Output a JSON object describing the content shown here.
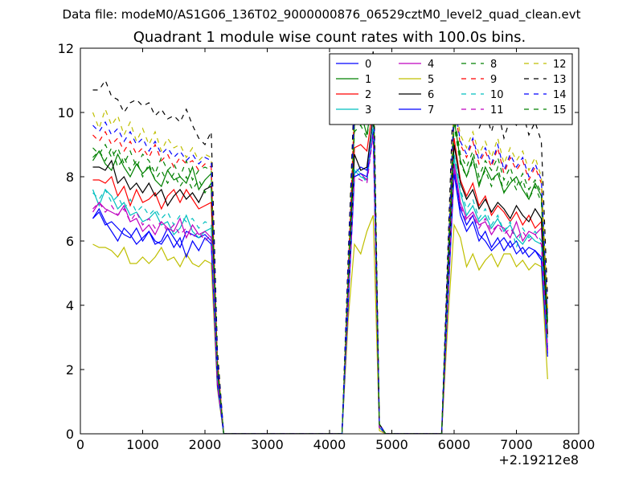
{
  "suptitle": "Data file: modeM0/AS1G06_136T02_9000000876_06529cztM0_level2_quad_clean.evt",
  "chart_data": {
    "type": "line",
    "title": "Quadrant 1 module wise count rates with 100.0s bins.",
    "xlabel": "",
    "ylabel": "",
    "x_offset_label": "+2.19212e8",
    "xlim": [
      0,
      8000
    ],
    "ylim": [
      0,
      12
    ],
    "xticks": [
      0,
      1000,
      2000,
      3000,
      4000,
      5000,
      6000,
      7000,
      8000
    ],
    "yticks": [
      0,
      2,
      4,
      6,
      8,
      10,
      12
    ],
    "grid": false,
    "legend_position": "top-right",
    "legend_columns": 4,
    "x_segments": [
      [
        200,
        300,
        400,
        500,
        600,
        700,
        800,
        900,
        1000,
        1100,
        1200,
        1300,
        1400,
        1500,
        1600,
        1700,
        1800,
        1900,
        2000,
        2100,
        2200,
        2300
      ],
      [
        4200,
        4300,
        4400,
        4500,
        4600,
        4700,
        4800,
        4900
      ],
      [
        5800,
        5900,
        6000,
        6100,
        6200,
        6300,
        6400,
        6500,
        6600,
        6700,
        6800,
        6900,
        7000,
        7100,
        7200,
        7300,
        7400,
        7500
      ]
    ],
    "gap_y": 0,
    "series": [
      {
        "name": "0",
        "color": "#0000ff",
        "dash": "solid",
        "segments": [
          [
            6.7,
            7.0,
            6.6,
            6.3,
            6.0,
            6.4,
            6.2,
            5.9,
            6.1,
            6.3,
            5.9,
            6.0,
            6.4,
            6.1,
            5.8,
            6.3,
            6.2,
            6.1,
            6.2,
            6.0,
            1.5,
            0.0
          ],
          [
            0.0,
            4.2,
            8.1,
            8.3,
            8.2,
            9.9,
            0.2,
            0.0
          ],
          [
            0.0,
            4.2,
            8.3,
            7.0,
            6.5,
            6.8,
            6.2,
            6.0,
            5.7,
            5.9,
            6.1,
            5.8,
            6.0,
            5.6,
            5.8,
            5.7,
            5.5,
            2.5
          ]
        ]
      },
      {
        "name": "1",
        "color": "#008000",
        "dash": "solid",
        "segments": [
          [
            8.5,
            8.8,
            8.4,
            8.2,
            8.7,
            8.3,
            8.0,
            8.4,
            8.1,
            8.3,
            7.9,
            7.7,
            8.2,
            7.9,
            8.0,
            7.8,
            8.3,
            7.6,
            7.9,
            8.1,
            2.2,
            0.0
          ],
          [
            0.0,
            4.8,
            9.6,
            10.0,
            9.3,
            10.6,
            0.3,
            0.0
          ],
          [
            0.0,
            5.0,
            9.8,
            8.5,
            8.0,
            8.6,
            7.7,
            8.3,
            7.9,
            8.1,
            7.5,
            7.8,
            8.0,
            7.6,
            7.3,
            7.8,
            7.4,
            3.5
          ]
        ]
      },
      {
        "name": "2",
        "color": "#ff0000",
        "dash": "solid",
        "segments": [
          [
            7.9,
            7.9,
            7.8,
            8.0,
            7.4,
            7.7,
            7.1,
            7.6,
            7.2,
            7.3,
            7.5,
            7.0,
            7.4,
            7.6,
            7.2,
            7.6,
            7.3,
            7.0,
            7.1,
            7.2,
            1.9,
            0.0
          ],
          [
            0.0,
            4.5,
            8.9,
            9.0,
            8.8,
            10.2,
            0.2,
            0.0
          ],
          [
            0.0,
            4.6,
            9.2,
            7.9,
            7.4,
            7.8,
            7.1,
            7.4,
            6.8,
            7.1,
            6.9,
            6.6,
            6.9,
            6.5,
            6.8,
            6.4,
            6.6,
            3.0
          ]
        ]
      },
      {
        "name": "3",
        "color": "#00bfbf",
        "dash": "solid",
        "segments": [
          [
            7.6,
            7.1,
            7.6,
            7.4,
            7.0,
            7.2,
            6.8,
            6.9,
            6.6,
            6.7,
            6.9,
            6.5,
            6.6,
            6.2,
            6.4,
            6.8,
            6.3,
            6.1,
            6.3,
            6.4,
            1.6,
            0.0
          ],
          [
            0.0,
            4.2,
            8.2,
            8.0,
            7.9,
            9.5,
            0.2,
            0.0
          ],
          [
            0.0,
            4.3,
            8.6,
            7.5,
            6.8,
            7.1,
            6.6,
            6.8,
            6.4,
            6.7,
            6.3,
            6.5,
            6.1,
            5.9,
            6.2,
            6.0,
            5.9,
            2.7
          ]
        ]
      },
      {
        "name": "4",
        "color": "#bf00bf",
        "dash": "solid",
        "segments": [
          [
            6.9,
            7.2,
            7.0,
            6.9,
            6.8,
            7.1,
            6.6,
            6.7,
            6.3,
            6.5,
            6.2,
            6.6,
            6.4,
            6.3,
            6.7,
            6.1,
            6.5,
            6.2,
            6.3,
            6.1,
            1.6,
            0.0
          ],
          [
            0.0,
            4.1,
            8.0,
            8.1,
            7.9,
            9.4,
            0.2,
            0.0
          ],
          [
            0.0,
            4.3,
            8.4,
            7.2,
            6.7,
            6.9,
            6.5,
            6.6,
            6.2,
            6.5,
            6.4,
            6.1,
            6.6,
            6.0,
            6.3,
            6.2,
            6.4,
            2.6
          ]
        ]
      },
      {
        "name": "5",
        "color": "#bfbf00",
        "dash": "solid",
        "segments": [
          [
            5.9,
            5.8,
            5.8,
            5.7,
            5.5,
            5.8,
            5.3,
            5.3,
            5.5,
            5.3,
            5.5,
            5.8,
            5.4,
            5.5,
            5.2,
            5.6,
            5.3,
            5.2,
            5.4,
            5.3,
            1.4,
            0.0
          ],
          [
            0.0,
            3.6,
            5.9,
            5.6,
            6.3,
            6.8,
            0.1,
            0.0
          ],
          [
            0.0,
            3.5,
            6.5,
            6.1,
            5.2,
            5.6,
            5.1,
            5.4,
            5.6,
            5.2,
            5.6,
            5.6,
            5.2,
            5.4,
            5.1,
            5.3,
            5.2,
            1.7
          ]
        ]
      },
      {
        "name": "6",
        "color": "#000000",
        "dash": "solid",
        "segments": [
          [
            8.3,
            8.3,
            8.2,
            8.5,
            7.8,
            8.0,
            7.6,
            7.8,
            7.5,
            7.8,
            7.4,
            7.6,
            7.1,
            7.4,
            7.6,
            7.3,
            7.5,
            7.2,
            7.6,
            7.7,
            2.0,
            0.0
          ],
          [
            0.0,
            4.4,
            8.7,
            8.2,
            8.3,
            9.9,
            0.3,
            0.0
          ],
          [
            0.0,
            4.6,
            9.0,
            7.8,
            7.3,
            7.6,
            7.0,
            7.3,
            6.9,
            7.2,
            7.0,
            6.7,
            7.1,
            6.8,
            6.6,
            7.0,
            6.7,
            3.1
          ]
        ]
      },
      {
        "name": "7",
        "color": "#0000ff",
        "dash": "solid",
        "segments": [
          [
            6.7,
            6.9,
            6.5,
            6.6,
            6.4,
            6.2,
            6.1,
            6.4,
            6.0,
            6.3,
            6.0,
            5.9,
            6.2,
            5.8,
            6.1,
            5.5,
            6.0,
            5.7,
            6.1,
            5.9,
            1.5,
            0.0
          ],
          [
            0.0,
            4.0,
            8.0,
            8.1,
            8.0,
            9.4,
            0.2,
            0.0
          ],
          [
            0.0,
            4.1,
            8.1,
            6.8,
            6.3,
            6.6,
            6.0,
            6.3,
            5.8,
            6.1,
            5.7,
            6.0,
            5.6,
            5.8,
            5.5,
            5.7,
            5.4,
            2.4
          ]
        ]
      },
      {
        "name": "8",
        "color": "#008000",
        "dash": "dashed",
        "segments": [
          [
            8.9,
            8.7,
            9.0,
            8.6,
            8.9,
            8.4,
            8.8,
            8.3,
            8.7,
            8.5,
            8.1,
            8.6,
            8.2,
            8.4,
            8.0,
            8.5,
            7.9,
            8.2,
            8.3,
            8.2,
            2.2,
            0.0
          ],
          [
            0.0,
            4.9,
            9.7,
            9.8,
            9.6,
            10.9,
            0.3,
            0.0
          ],
          [
            0.0,
            5.1,
            9.9,
            8.7,
            8.3,
            8.8,
            8.0,
            8.5,
            8.2,
            8.6,
            7.9,
            8.3,
            7.7,
            8.1,
            7.6,
            7.9,
            7.5,
            3.6
          ]
        ]
      },
      {
        "name": "9",
        "color": "#ff0000",
        "dash": "dashed",
        "segments": [
          [
            9.3,
            9.1,
            9.4,
            9.0,
            9.2,
            8.8,
            9.1,
            8.7,
            8.9,
            8.6,
            9.0,
            8.5,
            8.7,
            8.3,
            8.6,
            8.4,
            8.5,
            8.2,
            8.4,
            8.3,
            2.3,
            0.0
          ],
          [
            0.0,
            5.1,
            10.1,
            10.3,
            10.0,
            11.1,
            0.3,
            0.0
          ],
          [
            0.0,
            5.3,
            10.2,
            9.0,
            8.6,
            9.1,
            8.4,
            8.8,
            8.3,
            8.9,
            8.1,
            8.6,
            8.2,
            8.5,
            7.9,
            8.3,
            7.8,
            3.8
          ]
        ]
      },
      {
        "name": "10",
        "color": "#00bfbf",
        "dash": "dashed",
        "segments": [
          [
            7.5,
            7.3,
            7.6,
            7.2,
            7.4,
            7.0,
            7.3,
            6.9,
            7.1,
            6.8,
            7.0,
            6.7,
            6.9,
            6.5,
            6.8,
            6.6,
            6.7,
            6.4,
            6.6,
            6.5,
            1.7,
            0.0
          ],
          [
            0.0,
            4.3,
            8.3,
            8.1,
            7.8,
            9.6,
            0.2,
            0.0
          ],
          [
            0.0,
            4.4,
            8.7,
            7.6,
            7.0,
            7.3,
            6.7,
            7.0,
            6.5,
            6.8,
            6.3,
            6.6,
            5.8,
            6.4,
            6.1,
            6.3,
            6.0,
            2.8
          ]
        ]
      },
      {
        "name": "11",
        "color": "#bf00bf",
        "dash": "dashed",
        "segments": [
          [
            7.0,
            7.2,
            6.9,
            7.1,
            6.8,
            7.0,
            6.6,
            6.9,
            6.5,
            6.7,
            6.4,
            6.6,
            6.3,
            6.5,
            6.2,
            6.4,
            6.1,
            6.3,
            6.0,
            6.2,
            1.6,
            0.0
          ],
          [
            0.0,
            4.1,
            8.0,
            7.9,
            7.8,
            9.3,
            0.2,
            0.0
          ],
          [
            0.0,
            4.2,
            8.3,
            7.1,
            6.6,
            6.8,
            6.4,
            6.7,
            6.3,
            6.5,
            6.2,
            6.4,
            6.1,
            6.3,
            6.0,
            6.2,
            5.9,
            2.6
          ]
        ]
      },
      {
        "name": "12",
        "color": "#bfbf00",
        "dash": "dashed",
        "segments": [
          [
            10.0,
            9.5,
            10.1,
            9.6,
            9.9,
            9.3,
            9.7,
            9.1,
            9.5,
            9.0,
            9.4,
            8.8,
            9.2,
            8.9,
            9.0,
            8.6,
            8.9,
            8.5,
            8.7,
            8.6,
            2.4,
            0.0
          ],
          [
            0.0,
            5.3,
            10.3,
            10.5,
            10.2,
            11.3,
            0.3,
            0.0
          ],
          [
            0.0,
            5.5,
            10.4,
            9.3,
            8.9,
            9.4,
            8.7,
            9.1,
            8.6,
            9.2,
            8.4,
            8.9,
            8.5,
            8.8,
            8.2,
            8.6,
            8.0,
            3.9
          ]
        ]
      },
      {
        "name": "13",
        "color": "#000000",
        "dash": "dashed",
        "segments": [
          [
            10.7,
            10.7,
            11.0,
            10.5,
            10.4,
            10.0,
            10.3,
            10.4,
            10.2,
            10.3,
            9.9,
            10.1,
            9.8,
            9.9,
            9.7,
            10.1,
            9.6,
            9.2,
            9.0,
            9.4,
            2.6,
            0.0
          ],
          [
            0.0,
            5.6,
            10.8,
            11.0,
            10.6,
            11.9,
            0.3,
            0.0
          ],
          [
            0.0,
            5.8,
            11.3,
            10.2,
            9.7,
            10.3,
            9.5,
            10.0,
            9.4,
            10.1,
            9.2,
            9.8,
            9.6,
            10.0,
            9.3,
            9.7,
            9.1,
            4.2
          ]
        ]
      },
      {
        "name": "14",
        "color": "#0000ff",
        "dash": "dashed",
        "segments": [
          [
            9.6,
            9.4,
            9.7,
            9.3,
            9.5,
            9.1,
            9.4,
            9.0,
            9.2,
            8.8,
            9.1,
            8.7,
            8.9,
            8.6,
            8.8,
            8.5,
            8.7,
            8.4,
            8.6,
            8.5,
            2.3,
            0.0
          ],
          [
            0.0,
            5.2,
            10.2,
            10.4,
            10.1,
            11.2,
            0.3,
            0.0
          ],
          [
            0.0,
            5.4,
            10.3,
            9.1,
            8.7,
            9.2,
            8.5,
            8.9,
            8.4,
            9.0,
            8.2,
            8.7,
            8.3,
            8.6,
            8.0,
            8.4,
            7.9,
            3.7
          ]
        ]
      },
      {
        "name": "15",
        "color": "#008000",
        "dash": "dashed",
        "segments": [
          [
            8.6,
            8.8,
            8.5,
            8.9,
            8.3,
            8.6,
            8.2,
            8.5,
            8.0,
            8.4,
            7.9,
            8.2,
            7.8,
            8.1,
            7.7,
            8.0,
            7.6,
            7.9,
            7.5,
            7.8,
            2.1,
            0.0
          ],
          [
            0.0,
            4.8,
            9.4,
            9.6,
            9.2,
            10.7,
            0.3,
            0.0
          ],
          [
            0.0,
            5.0,
            9.6,
            8.4,
            8.0,
            8.5,
            7.8,
            8.2,
            7.7,
            8.3,
            7.5,
            8.0,
            7.6,
            7.9,
            7.3,
            7.7,
            7.2,
            3.4
          ]
        ]
      }
    ]
  }
}
